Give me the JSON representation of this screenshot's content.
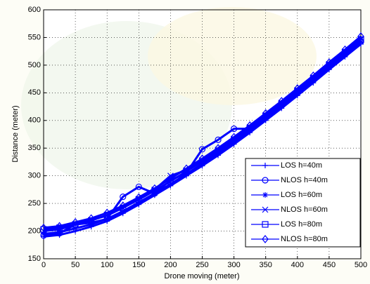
{
  "chart_data": {
    "type": "line",
    "xlabel": "Drone moving (meter)",
    "ylabel": "Distance (meter)",
    "x": [
      0,
      25,
      50,
      75,
      100,
      125,
      150,
      175,
      200,
      225,
      250,
      275,
      300,
      325,
      350,
      375,
      400,
      425,
      450,
      475,
      500
    ],
    "series": [
      {
        "name": "LOS h=40m",
        "color": "#0000ff",
        "marker": "plus",
        "values": [
          190,
          193,
          200,
          208,
          218,
          232,
          248,
          265,
          282,
          300,
          318,
          337,
          357,
          378,
          400,
          422,
          445,
          468,
          492,
          515,
          538
        ]
      },
      {
        "name": "NLOS h=40m",
        "color": "#0000ff",
        "marker": "circle",
        "values": [
          192,
          196,
          212,
          215,
          222,
          262,
          280,
          268,
          292,
          305,
          348,
          365,
          385,
          385,
          405,
          428,
          450,
          474,
          497,
          520,
          543
        ]
      },
      {
        "name": "LOS h=60m",
        "color": "#0000ff",
        "marker": "star",
        "values": [
          195,
          198,
          205,
          212,
          222,
          236,
          252,
          268,
          285,
          303,
          322,
          341,
          361,
          382,
          404,
          426,
          449,
          472,
          496,
          519,
          542
        ]
      },
      {
        "name": "NLOS h=60m",
        "color": "#0000ff",
        "marker": "x",
        "values": [
          200,
          203,
          212,
          220,
          228,
          242,
          258,
          275,
          300,
          310,
          328,
          347,
          367,
          388,
          410,
          432,
          455,
          478,
          502,
          525,
          548
        ]
      },
      {
        "name": "LOS h=80m",
        "color": "#0000ff",
        "marker": "square",
        "values": [
          203,
          206,
          212,
          219,
          229,
          242,
          257,
          273,
          290,
          308,
          326,
          345,
          365,
          386,
          408,
          430,
          453,
          476,
          500,
          523,
          546
        ]
      },
      {
        "name": "NLOS h=80m",
        "color": "#0000ff",
        "marker": "diamond",
        "values": [
          206,
          209,
          216,
          223,
          233,
          246,
          261,
          277,
          295,
          313,
          331,
          350,
          370,
          391,
          413,
          435,
          458,
          481,
          505,
          528,
          552
        ]
      }
    ],
    "xlim": [
      0,
      500
    ],
    "xticks": [
      0,
      50,
      100,
      150,
      200,
      250,
      300,
      350,
      400,
      450,
      500
    ],
    "ylim": [
      150,
      600
    ],
    "yticks": [
      150,
      200,
      250,
      300,
      350,
      400,
      450,
      500,
      550,
      600
    ],
    "grid": true,
    "legend": "lower right"
  }
}
